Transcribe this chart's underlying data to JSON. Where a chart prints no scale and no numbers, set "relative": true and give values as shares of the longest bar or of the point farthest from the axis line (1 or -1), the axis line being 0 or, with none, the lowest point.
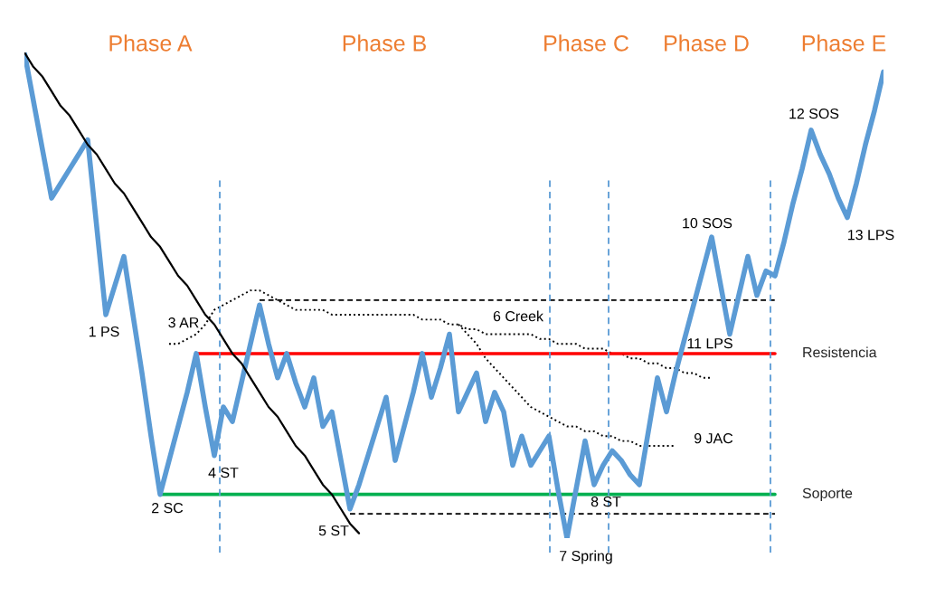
{
  "chart_data": {
    "type": "line",
    "relative": true,
    "legend": false,
    "categories": [
      null,
      null,
      null,
      null,
      null,
      null,
      null,
      null,
      null,
      null,
      null,
      null,
      null,
      null,
      null,
      null,
      null,
      null,
      null,
      null,
      null,
      null,
      null,
      null,
      null,
      null,
      null,
      null,
      null,
      null,
      null,
      null,
      null,
      null,
      null,
      null,
      null,
      null,
      null,
      null,
      null,
      null,
      null,
      null,
      null,
      null,
      null,
      null,
      null,
      null,
      null,
      null,
      null,
      null,
      null,
      null,
      null,
      null,
      null,
      null,
      null,
      null,
      null,
      null,
      null,
      null,
      null,
      null,
      null,
      null,
      null,
      null,
      null,
      null,
      null,
      null,
      null,
      null,
      null,
      null,
      null,
      null,
      null,
      null,
      null,
      null,
      null,
      null,
      null,
      null,
      null,
      null,
      null,
      null,
      null,
      null
    ],
    "series": [
      {
        "color": "#5b9bd5",
        "line_style": "solid",
        "values": [
          1.0,
          0.9,
          0.8,
          0.7,
          0.73,
          0.76,
          0.79,
          0.82,
          0.64,
          0.46,
          0.52,
          0.58,
          0.46,
          0.34,
          0.21,
          0.09,
          0.16,
          0.23,
          0.3,
          0.38,
          0.27,
          0.17,
          0.27,
          0.24,
          0.32,
          0.4,
          0.48,
          0.4,
          0.33,
          0.38,
          0.32,
          0.27,
          0.33,
          0.23,
          0.26,
          0.16,
          0.06,
          0.11,
          0.17,
          0.23,
          0.29,
          0.16,
          0.23,
          0.3,
          0.38,
          0.29,
          0.35,
          0.42,
          0.26,
          0.3,
          0.34,
          0.24,
          0.3,
          0.26,
          0.15,
          0.21,
          0.15,
          0.18,
          0.21,
          0.1,
          0.0,
          0.1,
          0.2,
          0.11,
          0.15,
          0.18,
          0.16,
          0.13,
          0.11,
          0.22,
          0.33,
          0.26,
          0.34,
          0.41,
          0.48,
          0.55,
          0.62,
          0.52,
          0.42,
          0.5,
          0.58,
          0.5,
          0.55,
          0.54,
          0.61,
          0.69,
          0.76,
          0.84,
          0.79,
          0.75,
          0.7,
          0.66,
          0.73,
          0.81,
          0.88,
          0.96
        ]
      },
      {
        "color": "#000000",
        "line_style": "solid",
        "values": [
          1.0,
          0.97,
          0.95,
          0.92,
          0.89,
          0.87,
          0.84,
          0.81,
          0.79,
          0.76,
          0.73,
          0.71,
          0.68,
          0.65,
          0.62,
          0.6,
          0.57,
          0.54,
          0.52,
          0.49,
          0.46,
          0.44,
          0.41,
          0.38,
          0.36,
          0.33,
          0.3,
          0.27,
          0.25,
          0.22,
          0.19,
          0.17,
          0.14,
          0.11,
          0.09,
          0.06,
          0.03,
          0.01,
          null,
          null,
          null,
          null,
          null,
          null,
          null,
          null,
          null,
          null,
          null,
          null,
          null,
          null,
          null,
          null,
          null,
          null,
          null,
          null,
          null,
          null,
          null,
          null,
          null,
          null,
          null,
          null,
          null,
          null,
          null,
          null,
          null,
          null,
          null,
          null,
          null,
          null,
          null,
          null,
          null,
          null,
          null,
          null,
          null,
          null,
          null,
          null,
          null,
          null,
          null,
          null,
          null,
          null,
          null,
          null,
          null,
          null
        ]
      },
      {
        "color": "#000000",
        "line_style": "dotted",
        "values": [
          null,
          null,
          null,
          null,
          null,
          null,
          null,
          null,
          null,
          null,
          null,
          null,
          null,
          null,
          null,
          null,
          0.4,
          0.4,
          0.41,
          0.42,
          0.44,
          0.47,
          0.48,
          0.49,
          0.5,
          0.51,
          0.51,
          0.5,
          0.49,
          0.48,
          0.47,
          0.47,
          0.47,
          0.47,
          0.46,
          0.46,
          0.46,
          0.46,
          0.46,
          0.46,
          0.46,
          0.46,
          0.46,
          0.46,
          0.45,
          0.45,
          0.45,
          0.44,
          0.44,
          0.43,
          0.43,
          0.42,
          0.42,
          0.42,
          0.42,
          0.42,
          0.42,
          0.41,
          0.41,
          0.4,
          0.4,
          0.4,
          0.39,
          0.39,
          0.39,
          0.38,
          0.38,
          0.37,
          0.37,
          0.36,
          0.36,
          0.35,
          0.35,
          0.34,
          0.34,
          0.33,
          0.33,
          null,
          null,
          null,
          null,
          null,
          null,
          null,
          null,
          null,
          null,
          null,
          null,
          null,
          null,
          null,
          null,
          null,
          null,
          null
        ]
      },
      {
        "color": "#000000",
        "line_style": "dotted",
        "values": [
          null,
          null,
          null,
          null,
          null,
          null,
          null,
          null,
          null,
          null,
          null,
          null,
          null,
          null,
          null,
          null,
          null,
          null,
          null,
          null,
          null,
          null,
          null,
          null,
          null,
          null,
          null,
          null,
          null,
          null,
          null,
          null,
          null,
          null,
          null,
          null,
          null,
          null,
          null,
          null,
          null,
          null,
          null,
          null,
          null,
          null,
          null,
          null,
          0.44,
          0.42,
          0.4,
          0.37,
          0.35,
          0.33,
          0.31,
          0.29,
          0.27,
          0.26,
          0.25,
          0.24,
          0.23,
          0.23,
          0.22,
          0.22,
          0.21,
          0.21,
          0.2,
          0.2,
          0.19,
          0.19,
          0.19,
          0.19,
          0.19,
          null,
          null,
          null,
          null,
          null,
          null,
          null,
          null,
          null,
          null,
          null,
          null,
          null,
          null,
          null,
          null,
          null,
          null,
          null,
          null,
          null,
          null,
          null
        ]
      },
      {
        "name": "Resistencia",
        "color": "#ff0000",
        "line_style": "solid",
        "values": [
          null,
          null,
          null,
          null,
          null,
          null,
          null,
          null,
          null,
          null,
          null,
          null,
          null,
          null,
          null,
          null,
          null,
          null,
          null,
          0.38,
          0.38,
          0.38,
          0.38,
          0.38,
          0.38,
          0.38,
          0.38,
          0.38,
          0.38,
          0.38,
          0.38,
          0.38,
          0.38,
          0.38,
          0.38,
          0.38,
          0.38,
          0.38,
          0.38,
          0.38,
          0.38,
          0.38,
          0.38,
          0.38,
          0.38,
          0.38,
          0.38,
          0.38,
          0.38,
          0.38,
          0.38,
          0.38,
          0.38,
          0.38,
          0.38,
          0.38,
          0.38,
          0.38,
          0.38,
          0.38,
          0.38,
          0.38,
          0.38,
          0.38,
          0.38,
          0.38,
          0.38,
          0.38,
          0.38,
          0.38,
          0.38,
          0.38,
          0.38,
          0.38,
          0.38,
          0.38,
          0.38,
          0.38,
          0.38,
          0.38,
          0.38,
          0.38,
          0.38,
          0.38,
          null,
          null,
          null,
          null,
          null,
          null,
          null,
          null,
          null,
          null,
          null,
          null
        ]
      },
      {
        "name": "Soporte",
        "color": "#00b050",
        "line_style": "solid",
        "values": [
          null,
          null,
          null,
          null,
          null,
          null,
          null,
          null,
          null,
          null,
          null,
          null,
          null,
          null,
          null,
          0.09,
          0.09,
          0.09,
          0.09,
          0.09,
          0.09,
          0.09,
          0.09,
          0.09,
          0.09,
          0.09,
          0.09,
          0.09,
          0.09,
          0.09,
          0.09,
          0.09,
          0.09,
          0.09,
          0.09,
          0.09,
          0.09,
          0.09,
          0.09,
          0.09,
          0.09,
          0.09,
          0.09,
          0.09,
          0.09,
          0.09,
          0.09,
          0.09,
          0.09,
          0.09,
          0.09,
          0.09,
          0.09,
          0.09,
          0.09,
          0.09,
          0.09,
          0.09,
          0.09,
          0.09,
          0.09,
          0.09,
          0.09,
          0.09,
          0.09,
          0.09,
          0.09,
          0.09,
          0.09,
          0.09,
          0.09,
          0.09,
          0.09,
          0.09,
          0.09,
          0.09,
          0.09,
          0.09,
          0.09,
          0.09,
          0.09,
          0.09,
          0.09,
          0.09,
          null,
          null,
          null,
          null,
          null,
          null,
          null,
          null,
          null,
          null,
          null,
          null
        ]
      },
      {
        "color": "#000000",
        "line_style": "dashed",
        "values": [
          null,
          null,
          null,
          null,
          null,
          null,
          null,
          null,
          null,
          null,
          null,
          null,
          null,
          null,
          null,
          null,
          null,
          null,
          null,
          null,
          null,
          null,
          null,
          null,
          null,
          null,
          0.49,
          0.49,
          0.49,
          0.49,
          0.49,
          0.49,
          0.49,
          0.49,
          0.49,
          0.49,
          0.49,
          0.49,
          0.49,
          0.49,
          0.49,
          0.49,
          0.49,
          0.49,
          0.49,
          0.49,
          0.49,
          0.49,
          0.49,
          0.49,
          0.49,
          0.49,
          0.49,
          0.49,
          0.49,
          0.49,
          0.49,
          0.49,
          0.49,
          0.49,
          0.49,
          0.49,
          0.49,
          0.49,
          0.49,
          0.49,
          0.49,
          0.49,
          0.49,
          0.49,
          0.49,
          0.49,
          0.49,
          0.49,
          0.49,
          0.49,
          0.49,
          0.49,
          0.49,
          0.49,
          0.49,
          0.49,
          0.49,
          0.49,
          null,
          null,
          null,
          null,
          null,
          null,
          null,
          null,
          null,
          null,
          null,
          null
        ]
      },
      {
        "color": "#000000",
        "line_style": "dashed",
        "values": [
          null,
          null,
          null,
          null,
          null,
          null,
          null,
          null,
          null,
          null,
          null,
          null,
          null,
          null,
          null,
          null,
          null,
          null,
          null,
          null,
          null,
          null,
          null,
          null,
          null,
          null,
          null,
          null,
          null,
          null,
          null,
          null,
          null,
          null,
          null,
          null,
          0.05,
          0.05,
          0.05,
          0.05,
          0.05,
          0.05,
          0.05,
          0.05,
          0.05,
          0.05,
          0.05,
          0.05,
          0.05,
          0.05,
          0.05,
          0.05,
          0.05,
          0.05,
          0.05,
          0.05,
          0.05,
          0.05,
          0.05,
          0.05,
          0.05,
          0.05,
          0.05,
          0.05,
          0.05,
          0.05,
          0.05,
          0.05,
          0.05,
          0.05,
          0.05,
          0.05,
          0.05,
          0.05,
          0.05,
          0.05,
          0.05,
          0.05,
          0.05,
          0.05,
          0.05,
          0.05,
          0.05,
          0.05,
          null,
          null,
          null,
          null,
          null,
          null,
          null,
          null,
          null,
          null,
          null,
          null
        ]
      }
    ],
    "annotations": [
      "Phase A",
      "Phase B",
      "Phase C",
      "Phase D",
      "Phase E",
      "1 PS",
      "2 SC",
      "3 AR",
      "4 ST",
      "5 ST",
      "6 Creek",
      "7 Spring",
      "8 ST",
      "9 JAC",
      "10 SOS",
      "11 LPS",
      "12 SOS",
      "13 LPS"
    ]
  }
}
